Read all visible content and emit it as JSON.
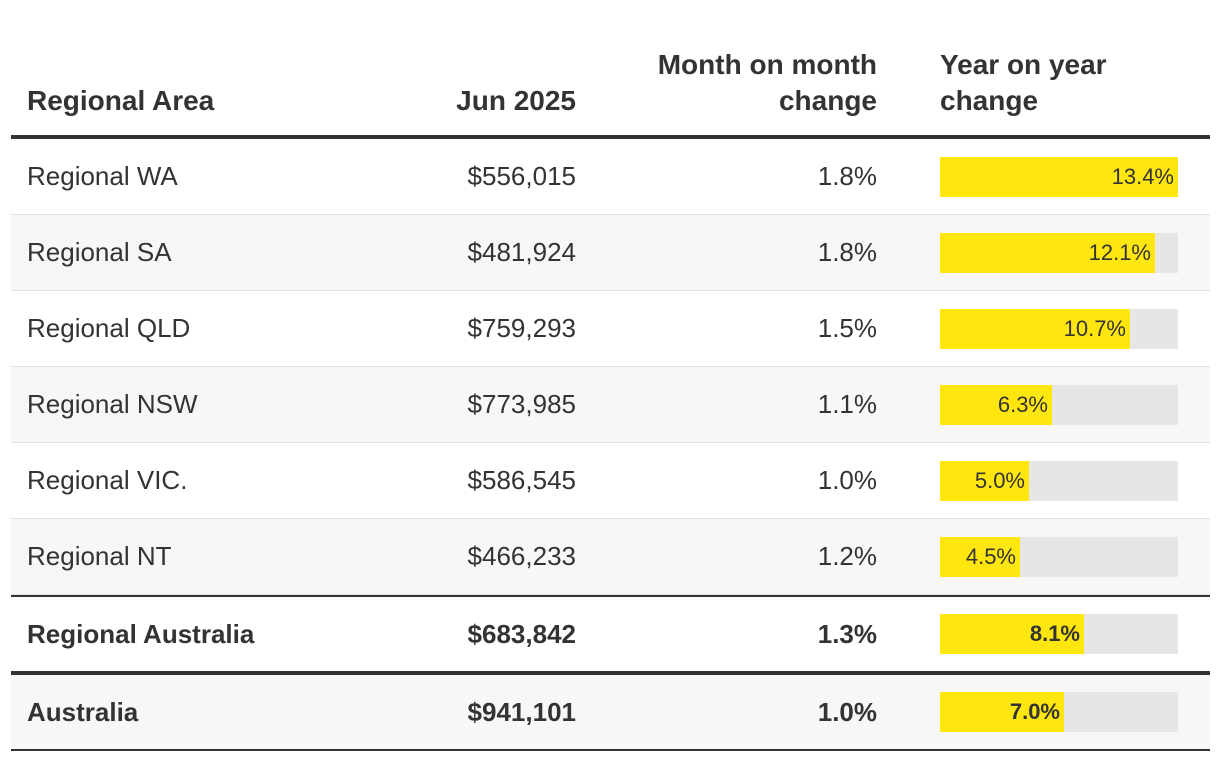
{
  "chart_data": {
    "type": "table",
    "columns": [
      "Regional Area",
      "Jun 2025",
      "Month on month change",
      "Year on year change"
    ],
    "column_headers": {
      "area": "Regional Area",
      "jun": "Jun 2025",
      "mom_line1": "Month on month",
      "mom_line2": "change",
      "yoy_line1": "Year on year",
      "yoy_line2": "change"
    },
    "rows": [
      {
        "area": "Regional WA",
        "jun": "$556,015",
        "mom": "1.8%",
        "yoy": "13.4%",
        "yoy_value": 13.4
      },
      {
        "area": "Regional SA",
        "jun": "$481,924",
        "mom": "1.8%",
        "yoy": "12.1%",
        "yoy_value": 12.1
      },
      {
        "area": "Regional QLD",
        "jun": "$759,293",
        "mom": "1.5%",
        "yoy": "10.7%",
        "yoy_value": 10.7
      },
      {
        "area": "Regional NSW",
        "jun": "$773,985",
        "mom": "1.1%",
        "yoy": "6.3%",
        "yoy_value": 6.3
      },
      {
        "area": "Regional VIC.",
        "jun": "$586,545",
        "mom": "1.0%",
        "yoy": "5.0%",
        "yoy_value": 5.0
      },
      {
        "area": "Regional NT",
        "jun": "$466,233",
        "mom": "1.2%",
        "yoy": "4.5%",
        "yoy_value": 4.5
      }
    ],
    "totals": [
      {
        "area": "Regional Australia",
        "jun": "$683,842",
        "mom": "1.3%",
        "yoy": "8.1%",
        "yoy_value": 8.1
      },
      {
        "area": "Australia",
        "jun": "$941,101",
        "mom": "1.0%",
        "yoy": "7.0%",
        "yoy_value": 7.0
      }
    ],
    "yoy_bar_max": 13.4,
    "colors": {
      "bar_fill": "#ffe60f",
      "bar_track": "#e6e6e6",
      "text": "#333333"
    }
  }
}
